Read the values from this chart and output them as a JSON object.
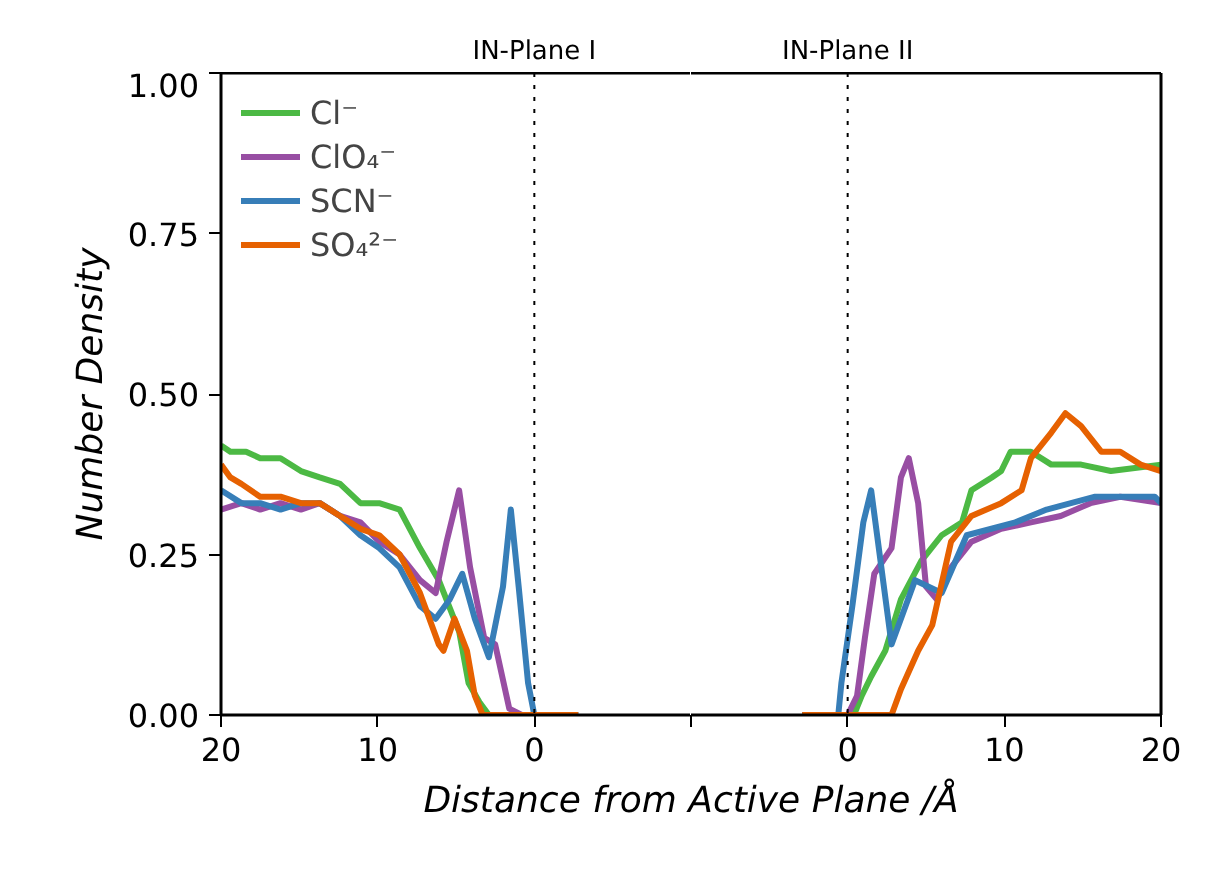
{
  "chart_data": [
    {
      "type": "line",
      "xlabel": "Distance from Active Plane /Å",
      "ylabel": "Number Density",
      "xlim": [
        20,
        -10
      ],
      "ylim": [
        0,
        1
      ],
      "xticks": [
        20,
        10,
        0,
        {
          "value": -10,
          "label": null
        }
      ],
      "yticks": [
        {
          "value": 0,
          "label": "0.00"
        },
        {
          "value": 0.25,
          "label": "0.25"
        },
        {
          "value": 0.5,
          "label": "0.50"
        },
        {
          "value": 0.75,
          "label": "0.75"
        },
        {
          "value": 1,
          "label": "1.00"
        }
      ],
      "grid": false,
      "legend": "top left",
      "line_style": "solid",
      "marker": "none",
      "ref_lines": [
        {
          "axis": "x",
          "value": 0,
          "label": "IN-Plane I",
          "color": "#000000",
          "line_style": "dotted"
        }
      ],
      "series": [
        {
          "name": "Cl⁻",
          "color": "#4cb944",
          "x": [
            20,
            19.4,
            18.4,
            17.5,
            16.2,
            14.9,
            13.7,
            12.4,
            11.1,
            9.9,
            8.6,
            7.3,
            6.1,
            4.8,
            4.2,
            3.5,
            2.9,
            -2.8
          ],
          "values": [
            0.42,
            0.41,
            0.41,
            0.4,
            0.4,
            0.38,
            0.37,
            0.36,
            0.33,
            0.33,
            0.32,
            0.26,
            0.21,
            0.13,
            0.05,
            0.02,
            0,
            0
          ]
        },
        {
          "name": "ClO₄⁻",
          "color": "#984ea3",
          "x": [
            20,
            18.7,
            17.5,
            16.2,
            14.9,
            13.7,
            12.4,
            11.1,
            9.9,
            8.6,
            7.3,
            6.3,
            5.6,
            4.8,
            4.1,
            3.2,
            2.5,
            1.6,
            0.8,
            -2.8
          ],
          "values": [
            0.32,
            0.33,
            0.32,
            0.33,
            0.32,
            0.33,
            0.31,
            0.3,
            0.27,
            0.25,
            0.21,
            0.19,
            0.27,
            0.35,
            0.23,
            0.12,
            0.11,
            0.01,
            0,
            0
          ]
        },
        {
          "name": "SCN⁻",
          "color": "#377eb8",
          "x": [
            20,
            18.7,
            17.5,
            16.2,
            14.9,
            13.7,
            12.4,
            11.1,
            9.9,
            8.6,
            7.3,
            6.3,
            5.4,
            4.6,
            3.8,
            2.9,
            2.0,
            1.5,
            1.0,
            0.4,
            0,
            -2.8
          ],
          "values": [
            0.35,
            0.33,
            0.33,
            0.32,
            0.33,
            0.33,
            0.31,
            0.28,
            0.26,
            0.23,
            0.17,
            0.15,
            0.18,
            0.22,
            0.15,
            0.09,
            0.2,
            0.32,
            0.2,
            0.05,
            0,
            0
          ]
        },
        {
          "name": "SO₄²⁻",
          "color": "#e66101",
          "x": [
            20,
            19.4,
            18.7,
            17.5,
            16.2,
            14.9,
            13.7,
            12.4,
            11.1,
            9.9,
            8.6,
            7.3,
            6.1,
            5.8,
            5.1,
            4.3,
            3.8,
            3.3,
            -2.8
          ],
          "values": [
            0.39,
            0.37,
            0.36,
            0.34,
            0.34,
            0.33,
            0.33,
            0.31,
            0.29,
            0.28,
            0.25,
            0.19,
            0.11,
            0.1,
            0.15,
            0.1,
            0.03,
            0,
            0
          ]
        }
      ]
    },
    {
      "type": "line",
      "xlim": [
        -10,
        20
      ],
      "ylim": [
        0,
        1
      ],
      "tick_labels": "x",
      "xticks": [
        {
          "value": -10,
          "label": null
        },
        0,
        10,
        20
      ],
      "grid": false,
      "line_style": "solid",
      "marker": "none",
      "ref_lines": [
        {
          "axis": "x",
          "value": 0,
          "label": "IN-Plane II",
          "color": "#000000",
          "line_style": "dotted"
        }
      ],
      "series": [
        {
          "color": "#4cb944",
          "x": [
            -2.9,
            0.4,
            0.9,
            1.5,
            2.4,
            3.4,
            4.7,
            6.0,
            7.3,
            7.9,
            9.2,
            9.8,
            10.4,
            11.7,
            13.0,
            14.9,
            16.8,
            20
          ],
          "values": [
            0,
            0,
            0.03,
            0.06,
            0.1,
            0.18,
            0.24,
            0.28,
            0.3,
            0.35,
            0.37,
            0.38,
            0.41,
            0.41,
            0.39,
            0.39,
            0.38,
            0.39
          ]
        },
        {
          "color": "#984ea3",
          "x": [
            -2.9,
            0,
            0.6,
            1.1,
            1.7,
            2.8,
            3.4,
            3.9,
            4.5,
            5.0,
            5.7,
            6.6,
            7.9,
            9.8,
            11.7,
            13.6,
            15.5,
            17.4,
            20
          ],
          "values": [
            0,
            0,
            0.03,
            0.12,
            0.22,
            0.26,
            0.37,
            0.4,
            0.33,
            0.2,
            0.18,
            0.23,
            0.27,
            0.29,
            0.3,
            0.31,
            0.33,
            0.34,
            0.33
          ]
        },
        {
          "color": "#377eb8",
          "x": [
            -2.9,
            -0.6,
            -0.4,
            0.3,
            1.0,
            1.5,
            2.8,
            4.3,
            6.0,
            7.6,
            10.7,
            12.7,
            15.8,
            19.6,
            20
          ],
          "values": [
            0,
            0,
            0.05,
            0.17,
            0.3,
            0.35,
            0.11,
            0.21,
            0.19,
            0.28,
            0.3,
            0.32,
            0.34,
            0.34,
            0.33
          ]
        },
        {
          "color": "#e66101",
          "x": [
            -2.9,
            2.8,
            3.4,
            4.5,
            5.4,
            6.6,
            7.9,
            9.8,
            11.1,
            11.7,
            13.0,
            13.9,
            14.9,
            16.2,
            17.4,
            18.7,
            20
          ],
          "values": [
            0,
            0,
            0.04,
            0.1,
            0.14,
            0.27,
            0.31,
            0.33,
            0.35,
            0.4,
            0.44,
            0.47,
            0.45,
            0.41,
            0.41,
            0.39,
            0.38
          ]
        }
      ]
    }
  ]
}
